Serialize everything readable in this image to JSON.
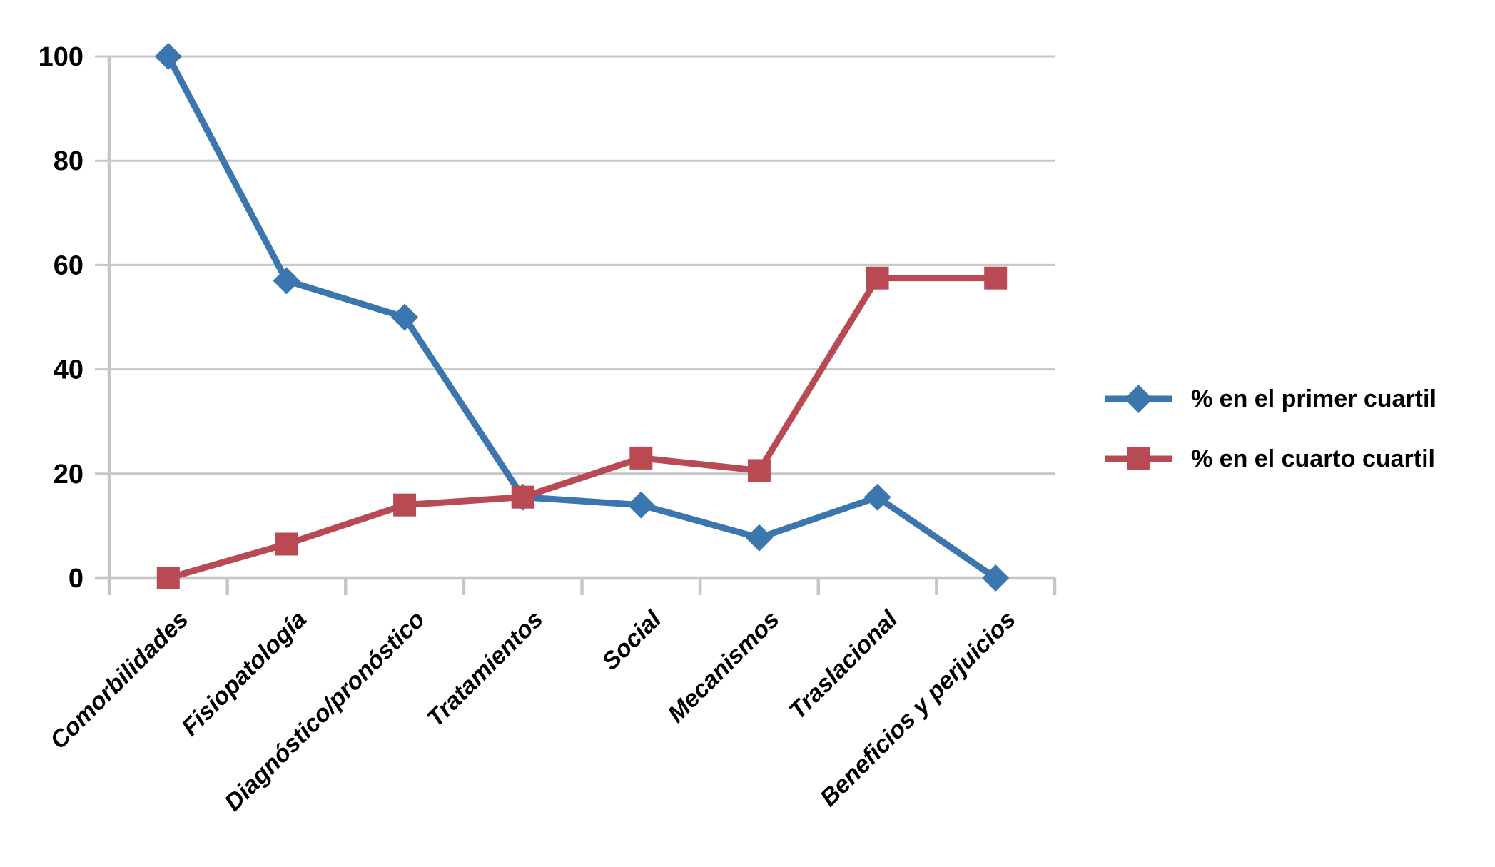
{
  "chart_data": {
    "type": "line",
    "categories": [
      "Comorbilidades",
      "Fisiopatología",
      "Diagnóstico/pronóstico",
      "Tratamientos",
      "Social",
      "Mecanismos",
      "Traslacional",
      "Beneficios y perjuicios"
    ],
    "series": [
      {
        "name": "% en el primer cuartil",
        "marker": "diamond",
        "color": "#3B76AE",
        "values": [
          100,
          57,
          50,
          15.5,
          14,
          7.7,
          15.5,
          0
        ]
      },
      {
        "name": "% en el cuarto cuartil",
        "marker": "square",
        "color": "#B94A54",
        "values": [
          0,
          6.5,
          14,
          15.5,
          23,
          20.6,
          57.5,
          57.5
        ]
      }
    ],
    "yticks": [
      0,
      20,
      40,
      60,
      80,
      100
    ],
    "ylim": [
      0,
      100
    ],
    "grid": "horizontal",
    "legend_position": "right-middle",
    "styles": {
      "gridline_color": "#C6C6C6",
      "axis_color": "#C6C6C6",
      "text_color": "#000000",
      "background": "#FFFFFF"
    }
  }
}
